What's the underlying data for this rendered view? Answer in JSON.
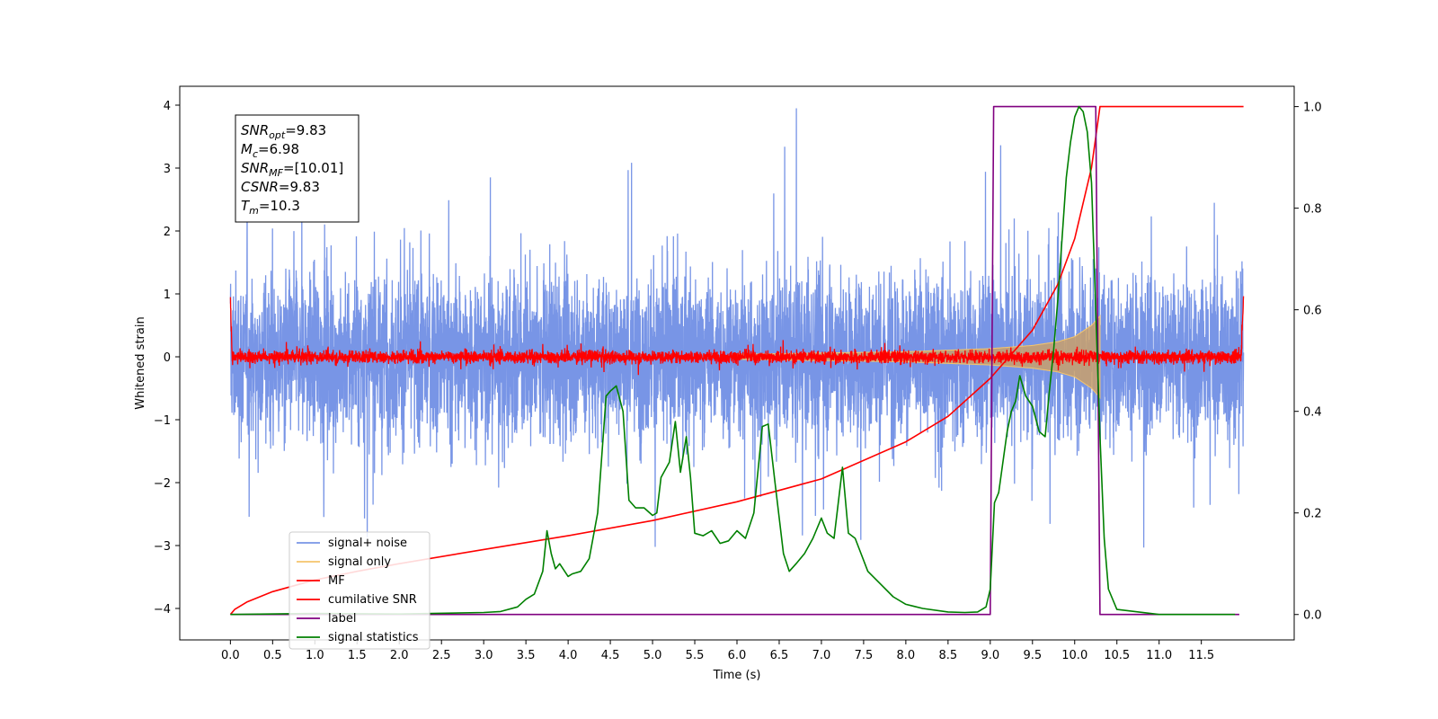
{
  "chart_data": {
    "type": "line",
    "xlabel": "Time (s)",
    "ylabel_left": "Whitened strain",
    "ylabel_right": "",
    "xlim": [
      -0.6,
      12.6
    ],
    "ylim_left": [
      -4.5,
      4.3
    ],
    "ylim_right": [
      -0.05,
      1.04
    ],
    "x_ticks": [
      0.0,
      0.5,
      1.0,
      1.5,
      2.0,
      2.5,
      3.0,
      3.5,
      4.0,
      4.5,
      5.0,
      5.5,
      6.0,
      6.5,
      7.0,
      7.5,
      8.0,
      8.5,
      9.0,
      9.5,
      10.0,
      10.5,
      11.0,
      11.5
    ],
    "x_tick_labels": [
      "0.0",
      "0.5",
      "1.0",
      "1.5",
      "2.0",
      "2.5",
      "3.0",
      "3.5",
      "4.0",
      "4.5",
      "5.0",
      "5.5",
      "6.0",
      "6.5",
      "7.0",
      "7.5",
      "8.0",
      "8.5",
      "9.0",
      "9.5",
      "10.0",
      "10.5",
      "11.0",
      "11.5"
    ],
    "y_left_ticks": [
      -4,
      -3,
      -2,
      -1,
      0,
      1,
      2,
      3,
      4
    ],
    "y_left_tick_labels": [
      "−4",
      "−3",
      "−2",
      "−1",
      "0",
      "1",
      "2",
      "3",
      "4"
    ],
    "y_right_ticks": [
      0.0,
      0.2,
      0.4,
      0.6,
      0.8,
      1.0
    ],
    "y_right_tick_labels": [
      "0.0",
      "0.2",
      "0.4",
      "0.6",
      "0.8",
      "1.0"
    ],
    "grid": false,
    "legend_position": "lower-left",
    "info_box": {
      "position": "upper-left",
      "lines": [
        {
          "sym": "SNR",
          "sub": "opt",
          "val": "=9.83"
        },
        {
          "sym": "M",
          "sub": "c",
          "val": "=6.98"
        },
        {
          "sym": "SNR",
          "sub": "MF",
          "val": "=[10.01]"
        },
        {
          "sym": "CSNR",
          "sub": "",
          "val": "=9.83"
        },
        {
          "sym": "T",
          "sub": "m",
          "val": "=10.3"
        }
      ]
    },
    "series": [
      {
        "name": "signal+ noise",
        "axis": "left",
        "color": "#7895e6",
        "kind": "noise",
        "x_range": [
          0.0,
          12.0
        ],
        "envelope_typical": 1.8,
        "envelope_max": 3.95,
        "note_values": "dense random noise; approximate amplitude envelope"
      },
      {
        "name": "signal only",
        "axis": "left",
        "color": "#f5c56b",
        "kind": "chirp",
        "envelope": {
          "t": [
            0.0,
            6.0,
            8.0,
            9.0,
            9.5,
            9.8,
            10.0,
            10.2,
            10.3
          ],
          "amp": [
            0.02,
            0.04,
            0.08,
            0.13,
            0.18,
            0.24,
            0.32,
            0.5,
            0.65
          ]
        },
        "end_time": 10.3
      },
      {
        "name": "MF",
        "axis": "left",
        "color": "#ff0000",
        "kind": "noise",
        "x_range": [
          0.0,
          12.0
        ],
        "envelope_typical": 0.18,
        "start_value": 1.0,
        "end_value": 0.95
      },
      {
        "name": "cumilative SNR",
        "axis": "right",
        "color": "#ff0000",
        "x": [
          0.0,
          0.05,
          0.2,
          0.5,
          1.0,
          1.5,
          2.0,
          3.0,
          4.0,
          5.0,
          6.0,
          7.0,
          8.0,
          8.5,
          9.0,
          9.5,
          9.8,
          10.0,
          10.2,
          10.3,
          12.0
        ],
        "y": [
          0.0,
          0.01,
          0.025,
          0.045,
          0.068,
          0.085,
          0.1,
          0.128,
          0.155,
          0.185,
          0.222,
          0.267,
          0.34,
          0.39,
          0.465,
          0.56,
          0.65,
          0.74,
          0.88,
          1.0,
          1.0
        ]
      },
      {
        "name": "label",
        "axis": "right",
        "color": "#800080",
        "x": [
          0.0,
          9.0,
          9.04,
          10.25,
          10.3,
          11.95
        ],
        "y": [
          0.0,
          0.0,
          1.0,
          1.0,
          0.0,
          0.0
        ]
      },
      {
        "name": "signal statistics",
        "axis": "right",
        "color": "#008000",
        "x": [
          0.0,
          1.0,
          2.0,
          3.0,
          3.2,
          3.4,
          3.5,
          3.6,
          3.7,
          3.75,
          3.8,
          3.85,
          3.9,
          4.0,
          4.05,
          4.15,
          4.25,
          4.35,
          4.45,
          4.5,
          4.57,
          4.65,
          4.72,
          4.8,
          4.9,
          5.0,
          5.05,
          5.1,
          5.2,
          5.27,
          5.33,
          5.4,
          5.45,
          5.5,
          5.6,
          5.7,
          5.8,
          5.9,
          6.0,
          6.1,
          6.2,
          6.3,
          6.37,
          6.45,
          6.55,
          6.62,
          6.7,
          6.8,
          6.9,
          7.0,
          7.07,
          7.15,
          7.25,
          7.32,
          7.4,
          7.55,
          7.7,
          7.85,
          8.0,
          8.2,
          8.5,
          8.7,
          8.85,
          8.95,
          9.0,
          9.05,
          9.1,
          9.15,
          9.2,
          9.25,
          9.3,
          9.35,
          9.42,
          9.5,
          9.58,
          9.65,
          9.7,
          9.75,
          9.8,
          9.85,
          9.9,
          9.95,
          10.0,
          10.05,
          10.1,
          10.15,
          10.2,
          10.3,
          10.35,
          10.4,
          10.5,
          11.0,
          11.9
        ],
        "y": [
          0.0,
          0.002,
          0.001,
          0.004,
          0.006,
          0.015,
          0.03,
          0.04,
          0.085,
          0.165,
          0.12,
          0.09,
          0.1,
          0.075,
          0.08,
          0.085,
          0.11,
          0.2,
          0.43,
          0.44,
          0.45,
          0.4,
          0.225,
          0.21,
          0.21,
          0.195,
          0.2,
          0.27,
          0.3,
          0.38,
          0.28,
          0.35,
          0.27,
          0.16,
          0.155,
          0.165,
          0.14,
          0.145,
          0.165,
          0.15,
          0.2,
          0.37,
          0.375,
          0.26,
          0.12,
          0.085,
          0.1,
          0.12,
          0.15,
          0.19,
          0.16,
          0.15,
          0.29,
          0.16,
          0.15,
          0.085,
          0.06,
          0.035,
          0.02,
          0.012,
          0.005,
          0.004,
          0.005,
          0.015,
          0.05,
          0.22,
          0.24,
          0.3,
          0.36,
          0.4,
          0.42,
          0.47,
          0.43,
          0.41,
          0.36,
          0.35,
          0.44,
          0.52,
          0.62,
          0.74,
          0.86,
          0.93,
          0.98,
          1.0,
          0.99,
          0.95,
          0.85,
          0.35,
          0.15,
          0.05,
          0.01,
          0.0,
          0.0
        ]
      }
    ]
  }
}
